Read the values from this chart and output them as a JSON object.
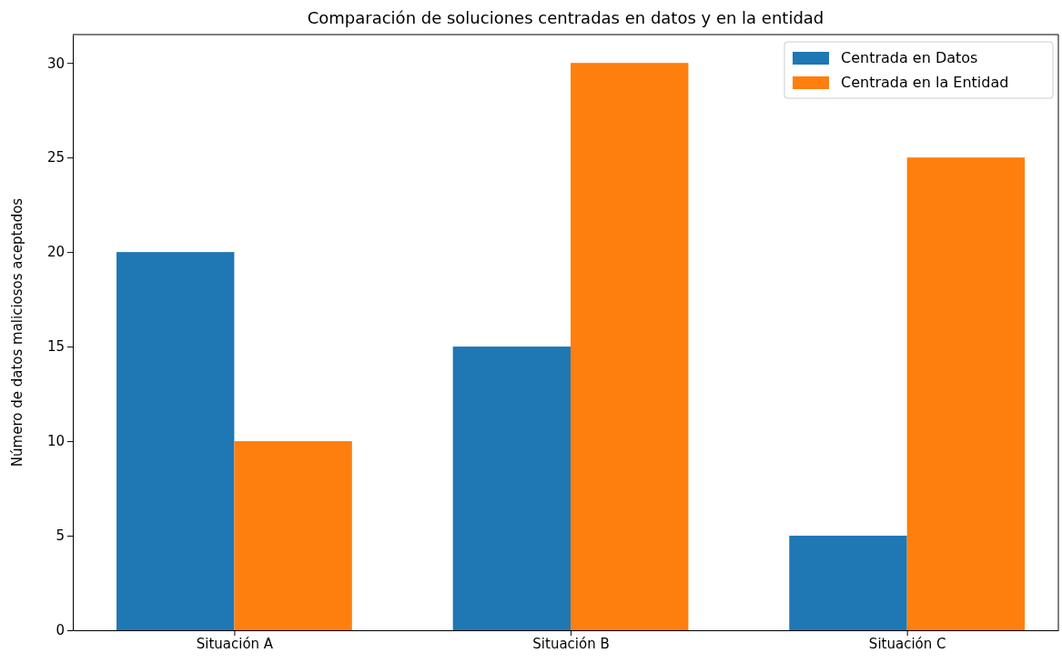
{
  "chart_data": {
    "type": "bar",
    "title": "Comparación de soluciones centradas en datos y en la entidad",
    "ylabel": "Número de datos maliciosos aceptados",
    "categories": [
      "Situación A",
      "Situación B",
      "Situación C"
    ],
    "series": [
      {
        "name": "Centrada en Datos",
        "color": "#1f77b4",
        "values": [
          20,
          15,
          5
        ]
      },
      {
        "name": "Centrada en la Entidad",
        "color": "#ff7f0e",
        "values": [
          10,
          30,
          25
        ]
      }
    ],
    "ylim": [
      0,
      31.5
    ],
    "yticks": [
      0,
      5,
      10,
      15,
      20,
      25,
      30
    ],
    "grid": false,
    "legend": "top right"
  }
}
